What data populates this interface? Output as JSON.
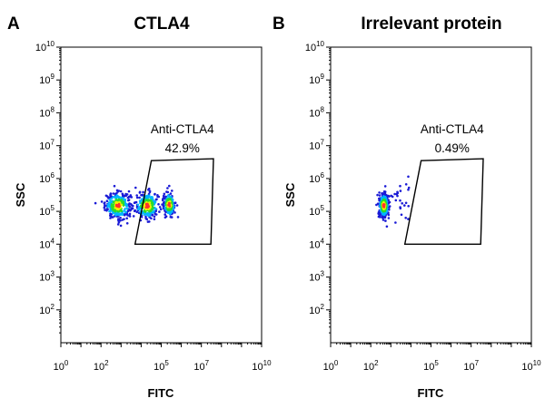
{
  "chart_data": [
    {
      "type": "scatter",
      "panel_letter": "A",
      "title": "CTLA4",
      "xlabel": "FITC",
      "ylabel": "SSC",
      "xscale": "log",
      "yscale": "log",
      "xlim": [
        1,
        10000000000
      ],
      "ylim": [
        10,
        10000000000
      ],
      "x_ticks": [
        "10^0",
        "10^2",
        "10^5",
        "10^7",
        "10^10"
      ],
      "y_ticks": [
        "10^2",
        "10^3",
        "10^4",
        "10^5",
        "10^6",
        "10^7",
        "10^8",
        "10^9",
        "10^10"
      ],
      "gate": {
        "name": "Anti-CTLA4",
        "percent": "42.9%",
        "vertices": [
          [
            5000,
            10000
          ],
          [
            32000,
            3500000
          ],
          [
            40000000,
            4000000
          ],
          [
            30000000,
            10000
          ]
        ]
      },
      "clusters": [
        {
          "x_center": 700,
          "y_center": 150000,
          "x_spread": 0.32,
          "y_spread": 0.2,
          "count": 300
        },
        {
          "x_center": 20000,
          "y_center": 150000,
          "x_spread": 0.3,
          "y_spread": 0.2,
          "count": 260
        },
        {
          "x_center": 250000,
          "y_center": 160000,
          "x_spread": 0.15,
          "y_spread": 0.18,
          "count": 180
        }
      ],
      "density_colors": [
        "#1b1bd6",
        "#00b4ff",
        "#2bdc2b",
        "#f2f200",
        "#ff3030"
      ]
    },
    {
      "type": "scatter",
      "panel_letter": "B",
      "title": "Irrelevant protein",
      "xlabel": "FITC",
      "ylabel": "SSC",
      "xscale": "log",
      "yscale": "log",
      "xlim": [
        1,
        10000000000
      ],
      "ylim": [
        10,
        10000000000
      ],
      "x_ticks": [
        "10^0",
        "10^2",
        "10^5",
        "10^7",
        "10^10"
      ],
      "y_ticks": [
        "10^2",
        "10^3",
        "10^4",
        "10^5",
        "10^6",
        "10^7",
        "10^8",
        "10^9",
        "10^10"
      ],
      "gate": {
        "name": "Anti-CTLA4",
        "percent": "0.49%",
        "vertices": [
          [
            5000,
            10000
          ],
          [
            32000,
            3500000
          ],
          [
            40000000,
            4000000
          ],
          [
            30000000,
            10000
          ]
        ]
      },
      "clusters": [
        {
          "x_center": 450,
          "y_center": 150000,
          "x_spread": 0.12,
          "y_spread": 0.18,
          "count": 380
        },
        {
          "x_center": 2500,
          "y_center": 200000,
          "x_spread": 0.35,
          "y_spread": 0.3,
          "count": 25
        }
      ],
      "density_colors": [
        "#1b1bd6",
        "#00b4ff",
        "#2bdc2b",
        "#f2f200",
        "#ff3030"
      ]
    }
  ]
}
